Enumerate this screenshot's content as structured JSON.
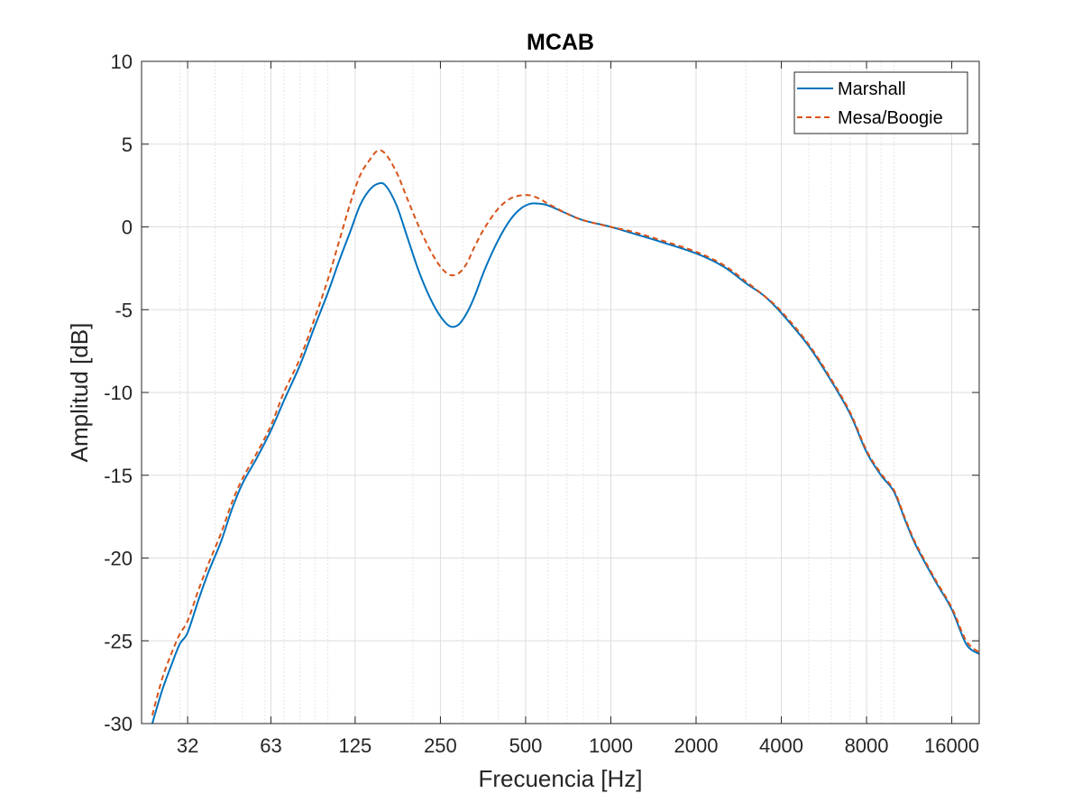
{
  "chart_data": {
    "type": "line",
    "title": "MCAB",
    "xlabel": "Frecuencia [Hz]",
    "ylabel": "Amplitud [dB]",
    "xscale": "log",
    "xlim": [
      22,
      20000
    ],
    "ylim": [
      -30,
      10
    ],
    "xticks": [
      32,
      63,
      125,
      250,
      500,
      1000,
      2000,
      4000,
      8000,
      16000
    ],
    "xtick_labels": [
      "32",
      "63",
      "125",
      "250",
      "500",
      "1000",
      "2000",
      "4000",
      "8000",
      "16000"
    ],
    "yticks": [
      -30,
      -25,
      -20,
      -15,
      -10,
      -5,
      0,
      5,
      10
    ],
    "ytick_labels": [
      "-30",
      "-25",
      "-20",
      "-15",
      "-10",
      "-5",
      "0",
      "5",
      "10"
    ],
    "grid": true,
    "legend_position": "top-right",
    "series": [
      {
        "name": "Marshall",
        "color": "#0072BD",
        "style": "solid",
        "x": [
          24,
          26,
          28,
          30,
          32,
          35,
          38,
          42,
          46,
          50,
          56,
          63,
          70,
          80,
          90,
          100,
          110,
          120,
          130,
          140,
          150,
          160,
          175,
          190,
          210,
          230,
          250,
          270,
          290,
          310,
          330,
          360,
          400,
          440,
          480,
          520,
          560,
          600,
          700,
          800,
          1000,
          1200,
          1500,
          2000,
          2500,
          3000,
          3500,
          4000,
          5000,
          6000,
          7000,
          8000,
          9000,
          10000,
          11000,
          12000,
          14000,
          16000,
          18000,
          20000
        ],
        "y": [
          -30.0,
          -28.0,
          -26.5,
          -25.2,
          -24.5,
          -22.5,
          -20.8,
          -19.0,
          -17.0,
          -15.5,
          -14.0,
          -12.3,
          -10.5,
          -8.3,
          -6.0,
          -4.0,
          -2.0,
          -0.3,
          1.3,
          2.2,
          2.6,
          2.5,
          1.3,
          -0.5,
          -2.7,
          -4.3,
          -5.4,
          -6.0,
          -5.9,
          -5.2,
          -4.2,
          -2.5,
          -0.8,
          0.4,
          1.1,
          1.4,
          1.4,
          1.3,
          0.8,
          0.4,
          0.0,
          -0.4,
          -0.9,
          -1.6,
          -2.4,
          -3.4,
          -4.2,
          -5.2,
          -7.2,
          -9.3,
          -11.3,
          -13.6,
          -15.0,
          -16.0,
          -17.8,
          -19.3,
          -21.4,
          -23.1,
          -25.2,
          -25.8
        ]
      },
      {
        "name": "Mesa/Boogie",
        "color": "#D95319",
        "style": "dashed",
        "x": [
          24,
          26,
          28,
          30,
          32,
          35,
          38,
          42,
          46,
          50,
          56,
          63,
          70,
          80,
          90,
          100,
          110,
          120,
          130,
          140,
          150,
          160,
          175,
          190,
          210,
          230,
          250,
          270,
          290,
          310,
          330,
          360,
          400,
          440,
          480,
          520,
          560,
          600,
          700,
          800,
          1000,
          1200,
          1500,
          2000,
          2500,
          3000,
          3500,
          4000,
          5000,
          6000,
          7000,
          8000,
          9000,
          10000,
          11000,
          12000,
          14000,
          16000,
          18000,
          20000
        ],
        "y": [
          -29.5,
          -27.3,
          -25.8,
          -24.6,
          -23.8,
          -21.9,
          -20.3,
          -18.5,
          -16.6,
          -15.2,
          -13.7,
          -12.0,
          -10.0,
          -7.9,
          -5.5,
          -3.2,
          -0.8,
          1.4,
          3.1,
          4.0,
          4.6,
          4.4,
          3.3,
          1.8,
          0.0,
          -1.4,
          -2.4,
          -2.9,
          -2.8,
          -2.2,
          -1.2,
          0.0,
          1.1,
          1.7,
          1.9,
          1.9,
          1.7,
          1.4,
          0.8,
          0.4,
          0.0,
          -0.3,
          -0.8,
          -1.5,
          -2.3,
          -3.3,
          -4.2,
          -5.1,
          -7.1,
          -9.2,
          -11.2,
          -13.5,
          -14.9,
          -15.9,
          -17.7,
          -19.2,
          -21.3,
          -23.0,
          -25.0,
          -25.7
        ]
      }
    ]
  }
}
